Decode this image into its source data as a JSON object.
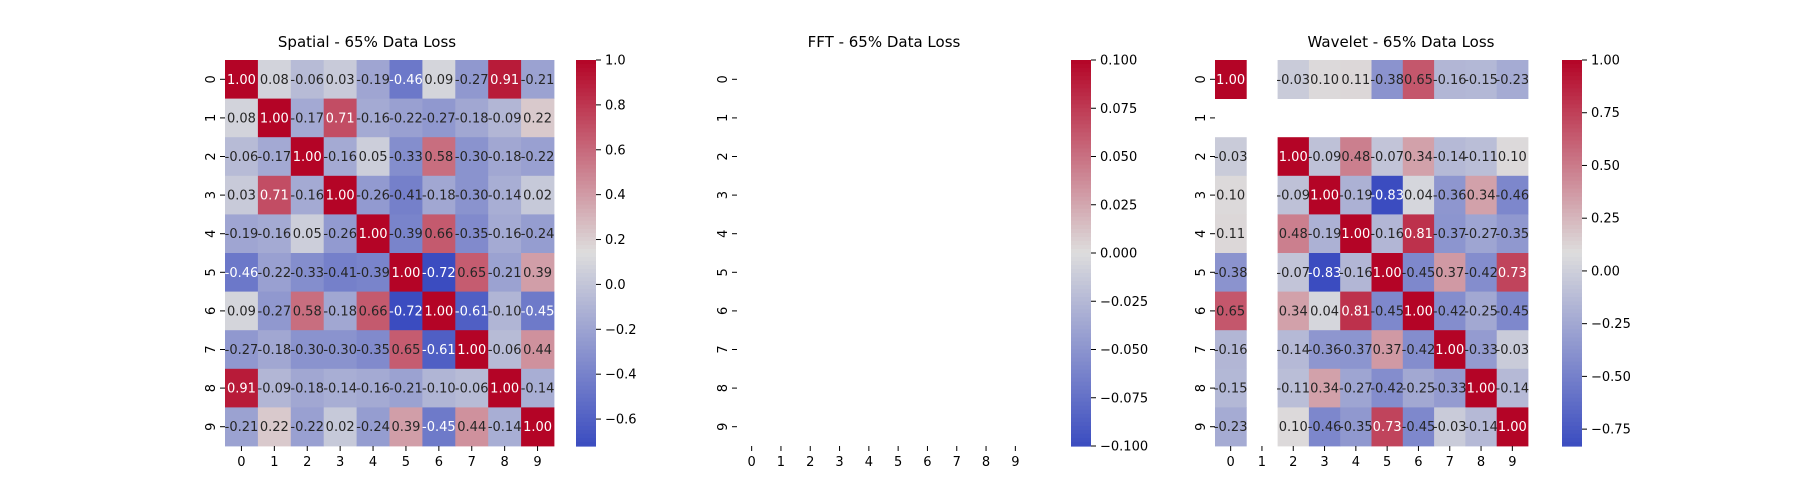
{
  "chart_data": [
    {
      "type": "heatmap",
      "title": "Spatial - 65% Data Loss",
      "x_ticks": [
        "0",
        "1",
        "2",
        "3",
        "4",
        "5",
        "6",
        "7",
        "8",
        "9"
      ],
      "y_ticks": [
        "0",
        "1",
        "2",
        "3",
        "4",
        "5",
        "6",
        "7",
        "8",
        "9"
      ],
      "vmin": -0.72,
      "vmax": 1.0,
      "colorbar_ticks": [
        "1.0",
        "0.8",
        "0.6",
        "0.4",
        "0.2",
        "0.0",
        "−0.2",
        "−0.4",
        "−0.6"
      ],
      "colorbar_tick_values": [
        1.0,
        0.8,
        0.6,
        0.4,
        0.2,
        0.0,
        -0.2,
        -0.4,
        -0.6
      ],
      "values": [
        [
          1.0,
          0.08,
          -0.06,
          0.03,
          -0.19,
          -0.46,
          0.09,
          -0.27,
          0.91,
          -0.21
        ],
        [
          0.08,
          1.0,
          -0.17,
          0.71,
          -0.16,
          -0.22,
          -0.27,
          -0.18,
          -0.09,
          0.22
        ],
        [
          -0.06,
          -0.17,
          1.0,
          -0.16,
          0.05,
          -0.33,
          0.58,
          -0.3,
          -0.18,
          -0.22
        ],
        [
          0.03,
          0.71,
          -0.16,
          1.0,
          -0.26,
          -0.41,
          -0.18,
          -0.3,
          -0.14,
          0.02
        ],
        [
          -0.19,
          -0.16,
          0.05,
          -0.26,
          1.0,
          -0.39,
          0.66,
          -0.35,
          -0.16,
          -0.24
        ],
        [
          -0.46,
          -0.22,
          -0.33,
          -0.41,
          -0.39,
          1.0,
          -0.72,
          0.65,
          -0.21,
          0.39
        ],
        [
          0.09,
          -0.27,
          0.58,
          -0.18,
          0.66,
          -0.72,
          1.0,
          -0.61,
          -0.1,
          -0.45
        ],
        [
          -0.27,
          -0.18,
          -0.3,
          -0.3,
          -0.35,
          0.65,
          -0.61,
          1.0,
          -0.06,
          0.44
        ],
        [
          0.91,
          -0.09,
          -0.18,
          -0.14,
          -0.16,
          -0.21,
          -0.1,
          -0.06,
          1.0,
          -0.14
        ],
        [
          -0.21,
          0.22,
          -0.22,
          0.02,
          -0.24,
          0.39,
          -0.45,
          0.44,
          -0.14,
          1.0
        ]
      ],
      "labels": [
        [
          "1.00",
          "0.08",
          "-0.06",
          "0.03",
          "-0.19",
          "-0.46",
          "0.09",
          "-0.27",
          "0.91",
          "-0.21"
        ],
        [
          "0.08",
          "1.00",
          "-0.17",
          "0.71",
          "-0.16",
          "-0.22",
          "-0.27",
          "-0.18",
          "-0.09",
          "0.22"
        ],
        [
          "-0.06",
          "-0.17",
          "1.00",
          "-0.16",
          "0.05",
          "-0.33",
          "0.58",
          "-0.30",
          "-0.18",
          "-0.22"
        ],
        [
          "0.03",
          "0.71",
          "-0.16",
          "1.00",
          "-0.26",
          "-0.41",
          "-0.18",
          "-0.30",
          "-0.14",
          "0.02"
        ],
        [
          "-0.19",
          "-0.16",
          "0.05",
          "-0.26",
          "1.00",
          "-0.39",
          "0.66",
          "-0.35",
          "-0.16",
          "-0.24"
        ],
        [
          "-0.46",
          "-0.22",
          "-0.33",
          "-0.41",
          "-0.39",
          "1.00",
          "-0.72",
          "0.65",
          "-0.21",
          "0.39"
        ],
        [
          "0.09",
          "-0.27",
          "0.58",
          "-0.18",
          "0.66",
          "-0.72",
          "1.00",
          "-0.61",
          "-0.10",
          "-0.45"
        ],
        [
          "-0.27",
          "-0.18",
          "-0.30",
          "-0.30",
          "-0.35",
          "0.65",
          "-0.61",
          "1.00",
          "-0.06",
          "0.44"
        ],
        [
          "0.91",
          "-0.09",
          "-0.18",
          "-0.14",
          "-0.16",
          "-0.21",
          "-0.10",
          "-0.06",
          "1.00",
          "-0.14"
        ],
        [
          "-0.21",
          "0.22",
          "-0.22",
          "0.02",
          "-0.24",
          "0.39",
          "-0.45",
          "0.44",
          "-0.14",
          "1.00"
        ]
      ]
    },
    {
      "type": "heatmap",
      "title": "FFT - 65% Data Loss",
      "x_ticks": [
        "0",
        "1",
        "2",
        "3",
        "4",
        "5",
        "6",
        "7",
        "8",
        "9"
      ],
      "y_ticks": [
        "0",
        "1",
        "2",
        "3",
        "4",
        "5",
        "6",
        "7",
        "8",
        "9"
      ],
      "vmin": -0.1,
      "vmax": 0.1,
      "colorbar_ticks": [
        "0.100",
        "0.075",
        "0.050",
        "0.025",
        "0.000",
        "−0.025",
        "−0.050",
        "−0.075",
        "−0.100"
      ],
      "colorbar_tick_values": [
        0.1,
        0.075,
        0.05,
        0.025,
        0.0,
        -0.025,
        -0.05,
        -0.075,
        -0.1
      ],
      "values": [
        [
          null,
          null,
          null,
          null,
          null,
          null,
          null,
          null,
          null,
          null
        ],
        [
          null,
          null,
          null,
          null,
          null,
          null,
          null,
          null,
          null,
          null
        ],
        [
          null,
          null,
          null,
          null,
          null,
          null,
          null,
          null,
          null,
          null
        ],
        [
          null,
          null,
          null,
          null,
          null,
          null,
          null,
          null,
          null,
          null
        ],
        [
          null,
          null,
          null,
          null,
          null,
          null,
          null,
          null,
          null,
          null
        ],
        [
          null,
          null,
          null,
          null,
          null,
          null,
          null,
          null,
          null,
          null
        ],
        [
          null,
          null,
          null,
          null,
          null,
          null,
          null,
          null,
          null,
          null
        ],
        [
          null,
          null,
          null,
          null,
          null,
          null,
          null,
          null,
          null,
          null
        ],
        [
          null,
          null,
          null,
          null,
          null,
          null,
          null,
          null,
          null,
          null
        ],
        [
          null,
          null,
          null,
          null,
          null,
          null,
          null,
          null,
          null,
          null
        ]
      ]
    },
    {
      "type": "heatmap",
      "title": "Wavelet - 65% Data Loss",
      "x_ticks": [
        "0",
        "1",
        "2",
        "3",
        "4",
        "5",
        "6",
        "7",
        "8",
        "9"
      ],
      "y_ticks": [
        "0",
        "1",
        "2",
        "3",
        "4",
        "5",
        "6",
        "7",
        "8",
        "9"
      ],
      "vmin": -0.83,
      "vmax": 1.0,
      "colorbar_ticks": [
        "1.00",
        "0.75",
        "0.50",
        "0.25",
        "0.00",
        "−0.25",
        "−0.50",
        "−0.75"
      ],
      "colorbar_tick_values": [
        1.0,
        0.75,
        0.5,
        0.25,
        0.0,
        -0.25,
        -0.5,
        -0.75
      ],
      "values": [
        [
          1.0,
          null,
          -0.03,
          0.1,
          0.11,
          -0.38,
          0.65,
          -0.16,
          -0.15,
          -0.23
        ],
        [
          null,
          null,
          null,
          null,
          null,
          null,
          null,
          null,
          null,
          null
        ],
        [
          -0.03,
          null,
          1.0,
          -0.09,
          0.48,
          -0.07,
          0.34,
          -0.14,
          -0.11,
          0.1
        ],
        [
          0.1,
          null,
          -0.09,
          1.0,
          -0.19,
          -0.83,
          0.04,
          -0.36,
          0.34,
          -0.46
        ],
        [
          0.11,
          null,
          0.48,
          -0.19,
          1.0,
          -0.16,
          0.81,
          -0.37,
          -0.27,
          -0.35
        ],
        [
          -0.38,
          null,
          -0.07,
          -0.83,
          -0.16,
          1.0,
          -0.45,
          0.37,
          -0.42,
          0.73
        ],
        [
          0.65,
          null,
          0.34,
          0.04,
          0.81,
          -0.45,
          1.0,
          -0.42,
          -0.25,
          -0.45
        ],
        [
          -0.16,
          null,
          -0.14,
          -0.36,
          -0.37,
          0.37,
          -0.42,
          1.0,
          -0.33,
          -0.03
        ],
        [
          -0.15,
          null,
          -0.11,
          0.34,
          -0.27,
          -0.42,
          -0.25,
          -0.33,
          1.0,
          -0.14
        ],
        [
          -0.23,
          null,
          0.1,
          -0.46,
          -0.35,
          0.73,
          -0.45,
          -0.03,
          -0.14,
          1.0
        ]
      ],
      "labels": [
        [
          "1.00",
          "",
          "-0.03",
          "0.10",
          "0.11",
          "-0.38",
          "0.65",
          "-0.16",
          "-0.15",
          "-0.23"
        ],
        [
          "",
          "",
          "",
          "",
          "",
          "",
          "",
          "",
          "",
          ""
        ],
        [
          "-0.03",
          "",
          "1.00",
          "-0.09",
          "0.48",
          "-0.07",
          "0.34",
          "-0.14",
          "-0.11",
          "0.10"
        ],
        [
          "0.10",
          "",
          "-0.09",
          "1.00",
          "-0.19",
          "-0.83",
          "0.04",
          "-0.36",
          "0.34",
          "-0.46"
        ],
        [
          "0.11",
          "",
          "0.48",
          "-0.19",
          "1.00",
          "-0.16",
          "0.81",
          "-0.37",
          "-0.27",
          "-0.35"
        ],
        [
          "-0.38",
          "",
          "-0.07",
          "-0.83",
          "-0.16",
          "1.00",
          "-0.45",
          "0.37",
          "-0.42",
          "0.73"
        ],
        [
          "0.65",
          "",
          "0.34",
          "0.04",
          "0.81",
          "-0.45",
          "1.00",
          "-0.42",
          "-0.25",
          "-0.45"
        ],
        [
          "-0.16",
          "",
          "-0.14",
          "-0.36",
          "-0.37",
          "0.37",
          "-0.42",
          "1.00",
          "-0.33",
          "-0.03"
        ],
        [
          "-0.15",
          "",
          "-0.11",
          "0.34",
          "-0.27",
          "-0.42",
          "-0.25",
          "-0.33",
          "1.00",
          "-0.14"
        ],
        [
          "-0.23",
          "",
          "0.10",
          "-0.46",
          "-0.35",
          "0.73",
          "-0.45",
          "-0.03",
          "-0.14",
          "1.00"
        ]
      ]
    }
  ],
  "colormap": {
    "name": "coolwarm",
    "low": "#3b4cc0",
    "mid": "#dddddd",
    "high": "#b40426"
  }
}
